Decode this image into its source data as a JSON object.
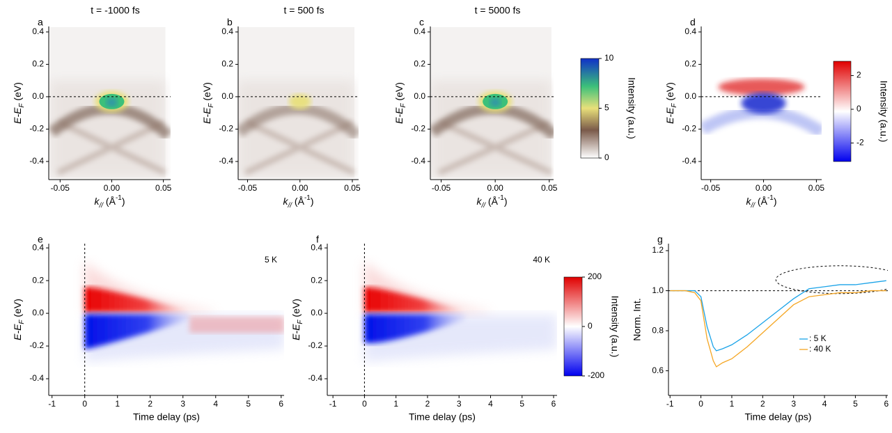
{
  "chart_data": [
    {
      "type": "heatmap",
      "panel": "a",
      "title": "t = -1000 fs",
      "colormap": "intensity",
      "xlabel": {
        "main": "k",
        "sub": "//",
        "rest": " (Å",
        "sup": "-1",
        "end": ")"
      },
      "ylabel": {
        "main": "E-E",
        "sub": "F",
        "rest": " (eV)"
      },
      "xlim": [
        -0.061,
        0.057
      ],
      "ylim": [
        -0.512,
        0.434
      ],
      "xticks": [
        -0.05,
        {
          "value": 0,
          "label": "0.00"
        },
        0.05
      ],
      "yticks": [
        0.4,
        0.2,
        {
          "value": 0,
          "label": "0.0"
        },
        -0.2,
        -0.4
      ],
      "reference": 0
    },
    {
      "type": "heatmap",
      "panel": "b",
      "title": "t = 500 fs",
      "colormap": "intensity-weak",
      "xlabel": {
        "main": "k",
        "sub": "//",
        "rest": " (Å",
        "sup": "-1",
        "end": ")"
      },
      "ylabel": {
        "main": "E-E",
        "sub": "F",
        "rest": " (eV)"
      },
      "xlim": [
        -0.059,
        0.056
      ],
      "ylim": [
        -0.512,
        0.434
      ],
      "xticks": [
        -0.05,
        {
          "value": 0,
          "label": "0.00"
        },
        0.05
      ],
      "yticks": [
        0.4,
        0.2,
        {
          "value": 0,
          "label": "0.0"
        },
        -0.2,
        -0.4
      ],
      "reference": 0
    },
    {
      "type": "heatmap",
      "panel": "c",
      "title": "t = 5000 fs",
      "colormap": "intensity",
      "xlabel": {
        "main": "k",
        "sub": "//",
        "rest": " (Å",
        "sup": "-1",
        "end": ")"
      },
      "ylabel": {
        "main": "E-E",
        "sub": "F",
        "rest": " (eV)"
      },
      "xlim": [
        -0.06,
        0.054
      ],
      "ylim": [
        -0.512,
        0.434
      ],
      "xticks": [
        -0.05,
        {
          "value": 0,
          "label": "0.00"
        },
        0.05
      ],
      "yticks": [
        0.4,
        0.2,
        {
          "value": 0,
          "label": "0.0"
        },
        -0.2,
        -0.4
      ],
      "reference": 0
    },
    {
      "type": "colorbar",
      "colormap": "intensity",
      "label": "Intensity (a.u.)",
      "ylim": [
        0,
        10
      ],
      "yticks": [
        0,
        5,
        10
      ]
    },
    {
      "type": "heatmap",
      "panel": "d",
      "colormap": "difference",
      "xlabel": {
        "main": "k",
        "sub": "//",
        "rest": " (Å",
        "sup": "-1",
        "end": ")"
      },
      "ylabel": {
        "main": "E-E",
        "sub": "F",
        "rest": " (eV)"
      },
      "xlim": [
        -0.059,
        0.055
      ],
      "ylim": [
        -0.512,
        0.434
      ],
      "xticks": [
        -0.05,
        {
          "value": 0,
          "label": "0.00"
        },
        0.05
      ],
      "yticks": [
        0.4,
        0.2,
        {
          "value": 0,
          "label": "0.0"
        },
        -0.2,
        -0.4
      ],
      "reference": 0
    },
    {
      "type": "colorbar",
      "colormap": "difference",
      "label": "Intensity (a.u.)",
      "ylim": [
        -3.1,
        2.85
      ],
      "yticks": [
        -2,
        0,
        2
      ]
    },
    {
      "type": "heatmap",
      "panel": "e",
      "colormap": "time-5K",
      "annotation": "5 K",
      "xlabel": "Time delay (ps)",
      "ylabel": {
        "main": "E-E",
        "sub": "F",
        "rest": " (eV)"
      },
      "xlim": [
        -1.1,
        6.09
      ],
      "ylim": [
        -0.502,
        0.426
      ],
      "xticks": [
        -1,
        0,
        1,
        2,
        3,
        4,
        5,
        6
      ],
      "yticks": [
        0.4,
        0.2,
        {
          "value": 0,
          "label": "0.0"
        },
        -0.2,
        -0.4
      ],
      "reference": 0
    },
    {
      "type": "heatmap",
      "panel": "f",
      "colormap": "time-40K",
      "annotation": "40 K",
      "xlabel": "Time delay (ps)",
      "ylabel": {
        "main": "E-E",
        "sub": "F",
        "rest": " (eV)"
      },
      "xlim": [
        -1.18,
        6.11
      ],
      "ylim": [
        -0.502,
        0.426
      ],
      "xticks": [
        -1,
        0,
        1,
        2,
        3,
        4,
        5,
        6
      ],
      "yticks": [
        0.4,
        0.2,
        {
          "value": 0,
          "label": "0.0"
        },
        -0.2,
        -0.4
      ],
      "reference": 0
    },
    {
      "type": "colorbar",
      "colormap": "difference",
      "label": "Intensity (a.u.)",
      "ylim": [
        -200,
        200
      ],
      "yticks": [
        -200,
        0,
        200
      ]
    },
    {
      "type": "line",
      "panel": "g",
      "xlabel": "Time delay (ps)",
      "ylabel": "Norm. Int.",
      "xlim": [
        -1.05,
        6.05
      ],
      "ylim": [
        0.477,
        1.235
      ],
      "xticks": [
        -1,
        0,
        1,
        2,
        3,
        4,
        5,
        6
      ],
      "yticks": [
        {
          "value": 0.6,
          "label": "0.6"
        },
        0.8,
        {
          "value": 1,
          "label": "1.0"
        },
        1.2
      ],
      "reference": 1,
      "x": [
        -1,
        -0.5,
        -0.2,
        0,
        0.2,
        0.4,
        0.5,
        0.7,
        1,
        1.5,
        2,
        2.5,
        3,
        3.5,
        4,
        4.5,
        5,
        5.5,
        6
      ],
      "series": [
        {
          "name": ": 5 K",
          "color": "#1aa3e8",
          "values": [
            1.0,
            1.0,
            1.0,
            0.97,
            0.82,
            0.72,
            0.7,
            0.71,
            0.73,
            0.78,
            0.84,
            0.9,
            0.96,
            1.01,
            1.02,
            1.03,
            1.03,
            1.04,
            1.05
          ]
        },
        {
          "name": ": 40 K",
          "color": "#f5a623",
          "values": [
            1.0,
            1.0,
            0.99,
            0.95,
            0.76,
            0.65,
            0.62,
            0.64,
            0.66,
            0.72,
            0.79,
            0.86,
            0.93,
            0.97,
            0.98,
            0.99,
            0.99,
            1.0,
            1.0
          ]
        }
      ]
    }
  ]
}
